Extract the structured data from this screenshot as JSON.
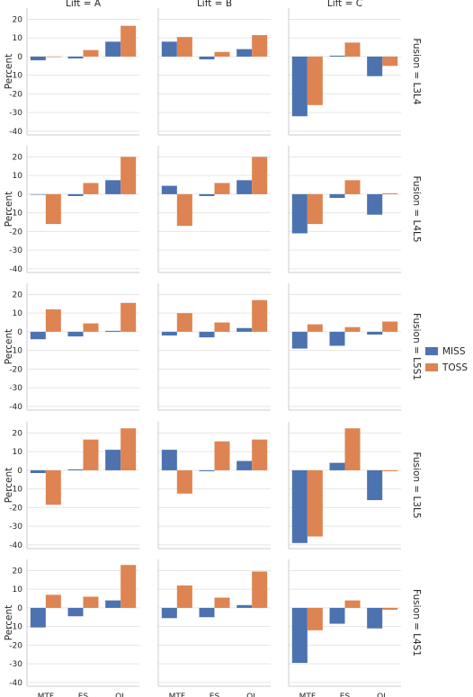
{
  "chart_data": {
    "type": "bar",
    "grid": true,
    "legend_placement": "right",
    "ylabel": "Percent",
    "ylim": [
      -42,
      26
    ],
    "yticks": [
      -40,
      -30,
      -20,
      -10,
      0,
      10,
      20
    ],
    "categories": [
      "MTF",
      "ES",
      "QL"
    ],
    "col_titles": [
      "Lift = A",
      "Lift = B",
      "Lift = C"
    ],
    "row_titles": [
      "Fusion = L3L4",
      "Fusion = L4L5",
      "Fusion = L5S1",
      "Fusion = L3L5",
      "Fusion = L4S1"
    ],
    "series": [
      {
        "name": "MISS",
        "color": "#4c72b0"
      },
      {
        "name": "TOSS",
        "color": "#dd8452"
      }
    ],
    "panels": [
      [
        {
          "MISS": [
            -2,
            -1,
            8
          ],
          "TOSS": [
            0,
            3.5,
            16.5
          ]
        },
        {
          "MISS": [
            8,
            -1.5,
            4
          ],
          "TOSS": [
            10.5,
            2.5,
            11.5
          ]
        },
        {
          "MISS": [
            -32,
            0.5,
            -10.5
          ],
          "TOSS": [
            -26,
            7.5,
            -5
          ]
        }
      ],
      [
        {
          "MISS": [
            0,
            -1,
            7.5
          ],
          "TOSS": [
            -16,
            6,
            20
          ]
        },
        {
          "MISS": [
            4.5,
            -1,
            7.5
          ],
          "TOSS": [
            -17,
            6,
            20
          ]
        },
        {
          "MISS": [
            -21,
            -2,
            -11
          ],
          "TOSS": [
            -16,
            7.5,
            0.5
          ]
        }
      ],
      [
        {
          "MISS": [
            -4,
            -2.5,
            0.5
          ],
          "TOSS": [
            12,
            4.5,
            15.5
          ]
        },
        {
          "MISS": [
            -2,
            -3,
            2
          ],
          "TOSS": [
            10,
            5,
            17
          ]
        },
        {
          "MISS": [
            -9,
            -7.5,
            -1.5
          ],
          "TOSS": [
            4,
            2.5,
            5.5
          ]
        }
      ],
      [
        {
          "MISS": [
            -1.5,
            0.5,
            11
          ],
          "TOSS": [
            -18.5,
            16.5,
            22.5
          ]
        },
        {
          "MISS": [
            11,
            -0.5,
            5
          ],
          "TOSS": [
            -12.5,
            15.5,
            16.5
          ]
        },
        {
          "MISS": [
            -39,
            4,
            -16
          ],
          "TOSS": [
            -35.5,
            22.5,
            -0.5
          ]
        }
      ],
      [
        {
          "MISS": [
            -10.5,
            -4.5,
            4
          ],
          "TOSS": [
            7,
            6,
            23
          ]
        },
        {
          "MISS": [
            -5.5,
            -5,
            1.5
          ],
          "TOSS": [
            12,
            5.5,
            19.5
          ]
        },
        {
          "MISS": [
            -29.5,
            -8.5,
            -11
          ],
          "TOSS": [
            -12,
            4,
            -1
          ]
        }
      ]
    ]
  }
}
